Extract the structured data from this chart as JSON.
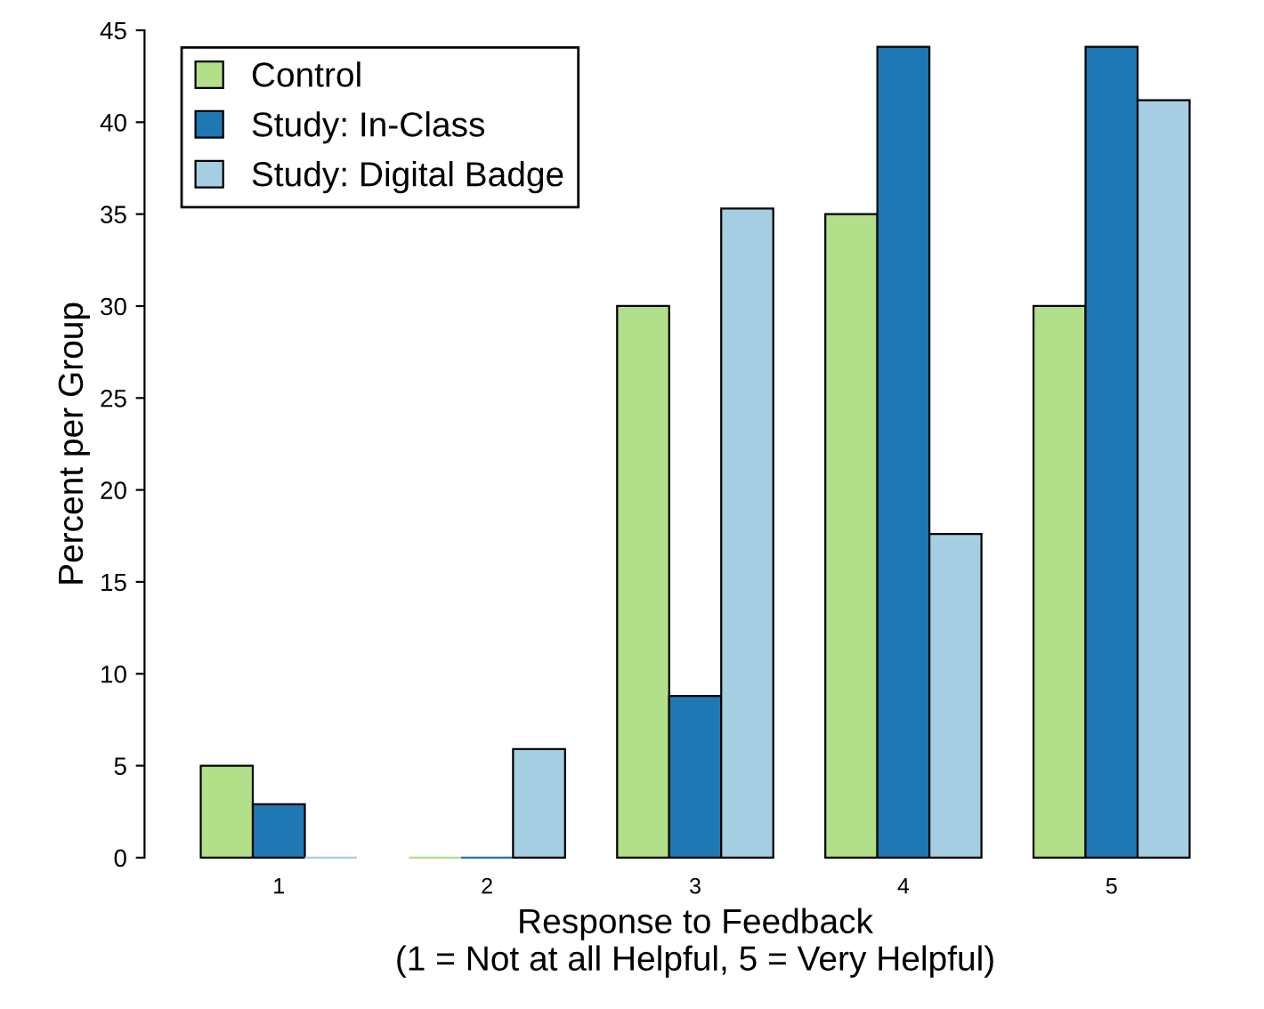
{
  "chart_data": {
    "type": "bar",
    "xlabel": "Response to Feedback\n(1 = Not at all Helpful, 5 = Very Helpful)",
    "ylabel": "Percent per Group",
    "categories": [
      "1",
      "2",
      "3",
      "4",
      "5"
    ],
    "series": [
      {
        "name": "Control",
        "color": "#b2df8a",
        "values": [
          5,
          0,
          30,
          35,
          30
        ]
      },
      {
        "name": "Study: In-Class",
        "color": "#1f78b4",
        "values": [
          2.9,
          0,
          8.8,
          44.1,
          44.1
        ]
      },
      {
        "name": "Study: Digital Badge",
        "color": "#a6cee3",
        "values": [
          0,
          5.9,
          35.3,
          17.6,
          41.2
        ]
      }
    ],
    "ylim": [
      0,
      45
    ],
    "yticks": [
      0,
      5,
      10,
      15,
      20,
      25,
      30,
      35,
      40,
      45
    ],
    "legend": "top left",
    "grid": false
  }
}
